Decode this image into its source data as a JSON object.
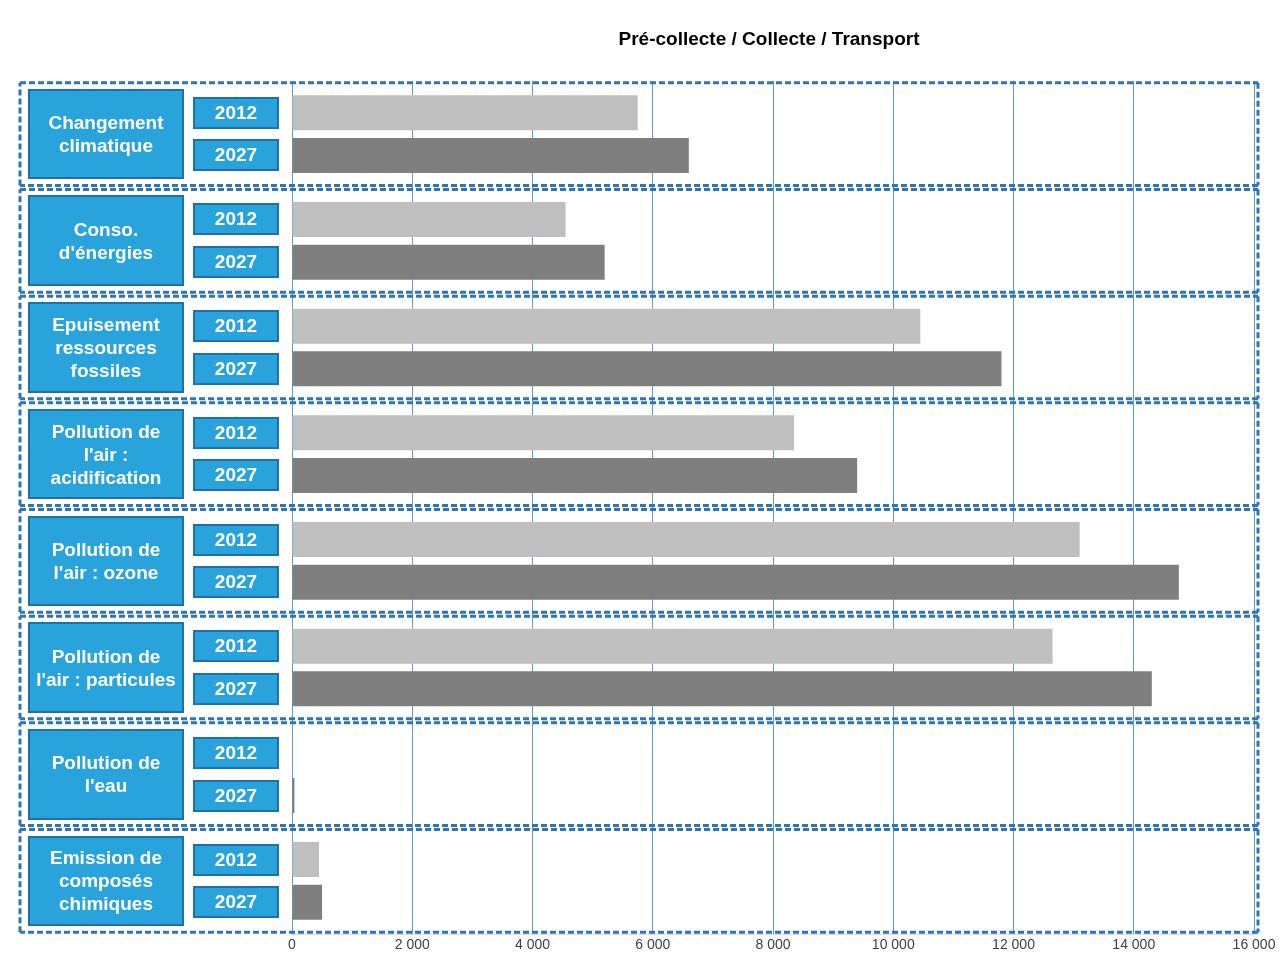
{
  "chart_data": {
    "type": "bar",
    "orientation": "horizontal",
    "title": "Pré-collecte / Collecte / Transport",
    "categories": [
      "Changement climatique",
      "Conso. d'énergies",
      "Epuisement ressources fossiles",
      "Pollution de l'air : acidification",
      "Pollution de l'air : ozone",
      "Pollution de l'air : particules",
      "Pollution de l'eau",
      "Emission de composés chimiques"
    ],
    "series": [
      {
        "name": "2012",
        "color": "#bfbfbf",
        "values": [
          5750,
          4550,
          10450,
          8350,
          13100,
          12650,
          null,
          450
        ]
      },
      {
        "name": "2027",
        "color": "#7f7f7f",
        "values": [
          6600,
          5200,
          11800,
          9400,
          14750,
          14300,
          40,
          500
        ]
      }
    ],
    "xlim": [
      0,
      16000
    ],
    "xticks": [
      0,
      {
        "value": 2000,
        "label": "2 000"
      },
      {
        "value": 4000,
        "label": "4 000"
      },
      {
        "value": 6000,
        "label": "6 000"
      },
      {
        "value": 8000,
        "label": "8 000"
      },
      {
        "value": 10000,
        "label": "10 000"
      },
      {
        "value": 12000,
        "label": "12 000"
      },
      {
        "value": 14000,
        "label": "14 000"
      },
      {
        "value": 16000,
        "label": "16 000"
      }
    ],
    "grid": "x",
    "legend": false
  }
}
